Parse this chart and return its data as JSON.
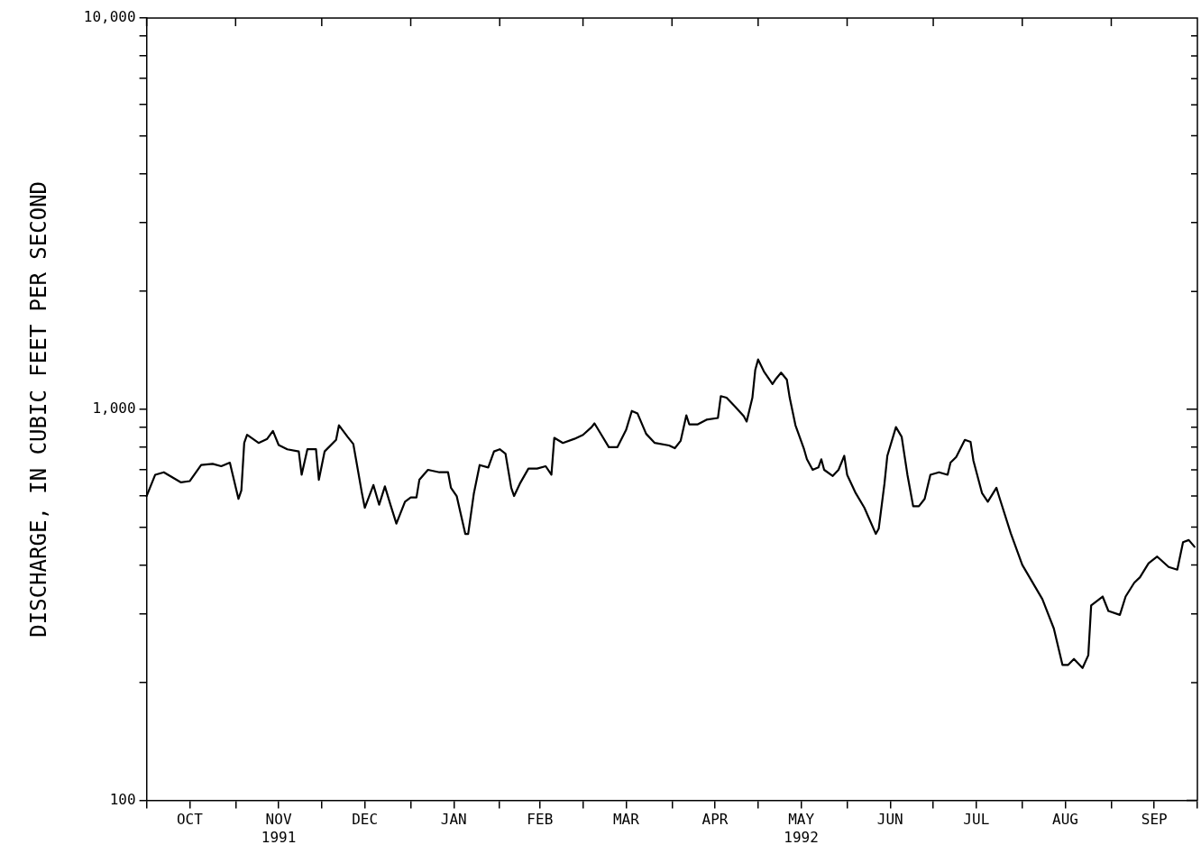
{
  "chart_data": {
    "type": "line",
    "ylabel": "DISCHARGE, IN CUBIC FEET PER SECOND",
    "log": "y",
    "grid": false,
    "legend": false,
    "marker": "none",
    "line_style": "solid",
    "xlim": [
      "1991-10-01",
      "1992-10-01"
    ],
    "xticks": [
      {
        "value": "1991-10-01",
        "label": null
      },
      {
        "value": "1991-10-16",
        "label": "OCT"
      },
      {
        "value": "1991-11-01",
        "label": null
      },
      {
        "value": "1991-11-16",
        "label": "NOV\n1991"
      },
      {
        "value": "1991-12-01",
        "label": null
      },
      {
        "value": "1991-12-16",
        "label": "DEC"
      },
      {
        "value": "1992-01-01",
        "label": null
      },
      {
        "value": "1992-01-16",
        "label": "JAN"
      },
      {
        "value": "1992-02-01",
        "label": null
      },
      {
        "value": "1992-02-15",
        "label": "FEB"
      },
      {
        "value": "1992-03-01",
        "label": null
      },
      {
        "value": "1992-03-16",
        "label": "MAR"
      },
      {
        "value": "1992-04-01",
        "label": null
      },
      {
        "value": "1992-04-16",
        "label": "APR"
      },
      {
        "value": "1992-05-01",
        "label": null
      },
      {
        "value": "1992-05-16",
        "label": "MAY\n1992"
      },
      {
        "value": "1992-06-01",
        "label": null
      },
      {
        "value": "1992-06-16",
        "label": "JUN"
      },
      {
        "value": "1992-07-01",
        "label": null
      },
      {
        "value": "1992-07-16",
        "label": "JUL"
      },
      {
        "value": "1992-08-01",
        "label": null
      },
      {
        "value": "1992-08-16",
        "label": "AUG"
      },
      {
        "value": "1992-09-01",
        "label": null
      },
      {
        "value": "1992-09-16",
        "label": "SEP"
      },
      {
        "value": "1992-10-01",
        "label": null
      }
    ],
    "ylim": [
      100,
      10000
    ],
    "yticks": [
      {
        "value": 100,
        "label": "100"
      },
      {
        "value": 200,
        "label": null
      },
      {
        "value": 300,
        "label": null
      },
      {
        "value": 400,
        "label": null
      },
      {
        "value": 500,
        "label": null
      },
      {
        "value": 600,
        "label": null
      },
      {
        "value": 700,
        "label": null
      },
      {
        "value": 800,
        "label": null
      },
      {
        "value": 900,
        "label": null
      },
      {
        "value": 1000,
        "label": "1,000"
      },
      {
        "value": 2000,
        "label": null
      },
      {
        "value": 3000,
        "label": null
      },
      {
        "value": 4000,
        "label": null
      },
      {
        "value": 5000,
        "label": null
      },
      {
        "value": 6000,
        "label": null
      },
      {
        "value": 7000,
        "label": null
      },
      {
        "value": 8000,
        "label": null
      },
      {
        "value": 9000,
        "label": null
      },
      {
        "value": 10000,
        "label": "10,000"
      }
    ],
    "series": [
      {
        "color": "#000000",
        "x": [
          "1991-10-01",
          "1991-10-04",
          "1991-10-07",
          "1991-10-13",
          "1991-10-16",
          "1991-10-20",
          "1991-10-24",
          "1991-10-27",
          "1991-10-30",
          "1991-10-31",
          "1991-11-02",
          "1991-11-03",
          "1991-11-04",
          "1991-11-05",
          "1991-11-09",
          "1991-11-12",
          "1991-11-14",
          "1991-11-16",
          "1991-11-19",
          "1991-11-23",
          "1991-11-24",
          "1991-11-26",
          "1991-11-29",
          "1991-11-30",
          "1991-12-02",
          "1991-12-06",
          "1991-12-07",
          "1991-12-10",
          "1991-12-12",
          "1991-12-13",
          "1991-12-15",
          "1991-12-16",
          "1991-12-19",
          "1991-12-21",
          "1991-12-23",
          "1991-12-25",
          "1991-12-27",
          "1991-12-30",
          "1992-01-01",
          "1992-01-03",
          "1992-01-04",
          "1992-01-07",
          "1992-01-11",
          "1992-01-14",
          "1992-01-15",
          "1992-01-17",
          "1992-01-20",
          "1992-01-21",
          "1992-01-23",
          "1992-01-25",
          "1992-01-28",
          "1992-01-30",
          "1992-02-01",
          "1992-02-03",
          "1992-02-05",
          "1992-02-06",
          "1992-02-08",
          "1992-02-11",
          "1992-02-14",
          "1992-02-17",
          "1992-02-19",
          "1992-02-20",
          "1992-02-23",
          "1992-02-27",
          "1992-03-01",
          "1992-03-04",
          "1992-03-05",
          "1992-03-07",
          "1992-03-10",
          "1992-03-13",
          "1992-03-16",
          "1992-03-18",
          "1992-03-20",
          "1992-03-23",
          "1992-03-26",
          "1992-03-31",
          "1992-04-02",
          "1992-04-04",
          "1992-04-06",
          "1992-04-07",
          "1992-04-10",
          "1992-04-13",
          "1992-04-17",
          "1992-04-18",
          "1992-04-20",
          "1992-04-23",
          "1992-04-26",
          "1992-04-27",
          "1992-04-29",
          "1992-04-30",
          "1992-05-01",
          "1992-05-03",
          "1992-05-06",
          "1992-05-07",
          "1992-05-09",
          "1992-05-11",
          "1992-05-12",
          "1992-05-14",
          "1992-05-17",
          "1992-05-18",
          "1992-05-20",
          "1992-05-22",
          "1992-05-23",
          "1992-05-24",
          "1992-05-27",
          "1992-05-29",
          "1992-05-31",
          "1992-06-01",
          "1992-06-04",
          "1992-06-07",
          "1992-06-11",
          "1992-06-12",
          "1992-06-14",
          "1992-06-15",
          "1992-06-18",
          "1992-06-20",
          "1992-06-22",
          "1992-06-24",
          "1992-06-26",
          "1992-06-28",
          "1992-06-30",
          "1992-07-03",
          "1992-07-06",
          "1992-07-07",
          "1992-07-09",
          "1992-07-12",
          "1992-07-14",
          "1992-07-15",
          "1992-07-18",
          "1992-07-20",
          "1992-07-23",
          "1992-07-24",
          "1992-07-28",
          "1992-08-01",
          "1992-08-08",
          "1992-08-12",
          "1992-08-15",
          "1992-08-17",
          "1992-08-19",
          "1992-08-22",
          "1992-08-24",
          "1992-08-25",
          "1992-08-29",
          "1992-08-31",
          "1992-09-04",
          "1992-09-06",
          "1992-09-09",
          "1992-09-11",
          "1992-09-14",
          "1992-09-17",
          "1992-09-21",
          "1992-09-24",
          "1992-09-26",
          "1992-09-28",
          "1992-09-30"
        ],
        "values": [
          600,
          680,
          690,
          650,
          655,
          720,
          725,
          715,
          730,
          680,
          590,
          620,
          820,
          860,
          820,
          840,
          880,
          810,
          790,
          780,
          680,
          790,
          790,
          660,
          780,
          835,
          910,
          850,
          815,
          740,
          610,
          560,
          640,
          570,
          635,
          568,
          510,
          580,
          595,
          595,
          660,
          700,
          690,
          690,
          630,
          600,
          480,
          480,
          610,
          720,
          710,
          780,
          790,
          770,
          630,
          600,
          645,
          705,
          705,
          715,
          680,
          845,
          820,
          840,
          860,
          900,
          920,
          870,
          800,
          800,
          885,
          990,
          975,
          865,
          820,
          808,
          795,
          830,
          965,
          915,
          915,
          940,
          950,
          1080,
          1070,
          1015,
          960,
          930,
          1070,
          1260,
          1340,
          1250,
          1160,
          1190,
          1240,
          1190,
          1070,
          910,
          790,
          745,
          700,
          710,
          745,
          700,
          675,
          700,
          760,
          680,
          610,
          560,
          480,
          495,
          645,
          760,
          900,
          850,
          680,
          565,
          565,
          590,
          680,
          690,
          680,
          730,
          755,
          835,
          825,
          738,
          610,
          580,
          630,
          596,
          482,
          400,
          327,
          275,
          222,
          222,
          230,
          218,
          235,
          315,
          332,
          305,
          298,
          332,
          360,
          372,
          404,
          420,
          395,
          389,
          457,
          463,
          445
        ]
      }
    ]
  }
}
